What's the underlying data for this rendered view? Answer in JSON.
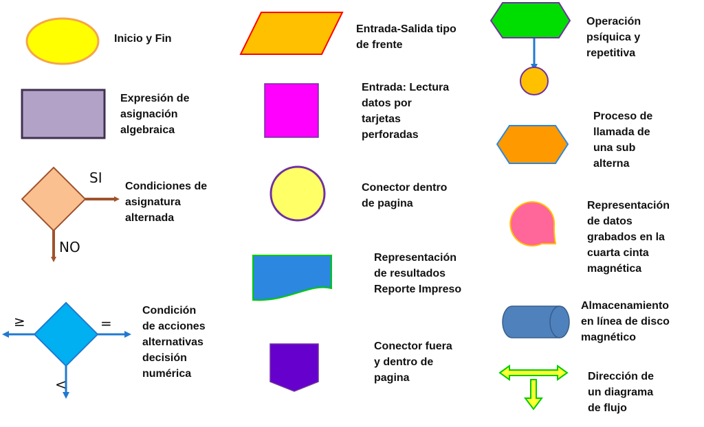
{
  "colors": {
    "yellow": "#ffff00",
    "orange_stroke": "#f4a64a",
    "lavender": "#b3a2c7",
    "dark_purple": "#403152",
    "peach": "#fac090",
    "brown": "#a0522d",
    "sky": "#00b0f0",
    "blue": "#1f7ad1",
    "orange": "#ffc000",
    "red": "#ff0000",
    "magenta": "#ff00ff",
    "light_yellow": "#ffff66",
    "purple": "#7030a0",
    "print_blue": "#2b87e0",
    "green": "#00cc00",
    "violet": "#6600cc",
    "lime_green": "#00dd00",
    "amber": "#ffc000",
    "sub_orange": "#ff9900",
    "pink": "#ff6699",
    "disk_blue": "#4f81bd",
    "arrow_yellow": "#ffff33"
  },
  "symbols": [
    {
      "id": "inicio-fin",
      "label": "Inicio y Fin"
    },
    {
      "id": "asignacion",
      "label": "Expresión de\nasignación\nalgebraica"
    },
    {
      "id": "condicion",
      "label": "Condiciones de\nasignatura\nalternada",
      "marks": [
        "SI",
        "NO"
      ]
    },
    {
      "id": "decision-numerica",
      "label": "Condición\nde acciones\nalternativas\ndecisión\nnumérica",
      "marks": [
        "≥",
        "=",
        "<"
      ]
    },
    {
      "id": "entrada-salida",
      "label": "Entrada-Salida tipo\nde frente"
    },
    {
      "id": "tarjetas",
      "label": "Entrada: Lectura\ndatos por\ntarjetas\nperforadas"
    },
    {
      "id": "conector-pagina",
      "label": "Conector dentro\nde pagina"
    },
    {
      "id": "reporte",
      "label": "Representación\nde resultados\nReporte Impreso"
    },
    {
      "id": "conector-fuera",
      "label": "Conector fuera\ny dentro de\npagina"
    },
    {
      "id": "operacion-psiquica",
      "label": "Operación\npsíquica y\nrepetitiva"
    },
    {
      "id": "subalterna",
      "label": "Proceso de\nllamada de\nuna sub\nalterna"
    },
    {
      "id": "cinta",
      "label": "Representación\nde datos\ngrabados en la\ncuarta cinta\nmagnética"
    },
    {
      "id": "disco",
      "label": "Almacenamiento\nen línea de disco\nmagnético"
    },
    {
      "id": "direccion",
      "label": "Dirección de\nun diagrama\nde flujo"
    }
  ]
}
